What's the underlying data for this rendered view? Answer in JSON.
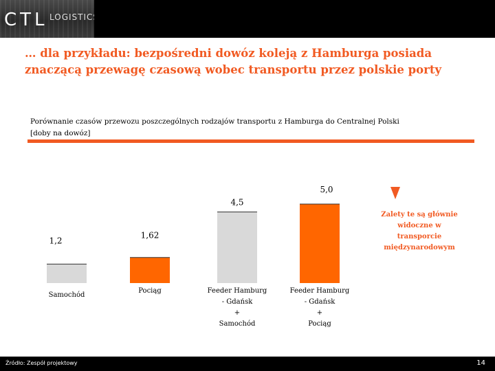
{
  "header": {
    "logo_text": "CTL",
    "logo_sub": "LOGISTICS"
  },
  "title": "… dla przykładu: bezpośredni dowóz koleją z Hamburga posiada znaczącą przewagę czasową wobec transportu przez polskie porty",
  "chart_title_line1": "Porównanie czasów przewozu poszczególnych rodzajów transportu z Hamburga do Centralnej Polski",
  "chart_title_line2": "[doby na dowóz]",
  "note": "Zalety te są głównie widoczne w transporcie międzynarodowym",
  "categories": [
    {
      "line1": "Samochód",
      "line2": "",
      "line3": "",
      "line4": ""
    },
    {
      "line1": "Pociąg",
      "line2": "",
      "line3": "",
      "line4": ""
    },
    {
      "line1": "Feeder Hamburg",
      "line2": "- Gdańsk",
      "line3": "+",
      "line4": "Samochód"
    },
    {
      "line1": "Feeder Hamburg",
      "line2": "- Gdańsk",
      "line3": "+",
      "line4": "Pociąg"
    }
  ],
  "value_labels": [
    "1,2",
    "1,62",
    "4,5",
    "5,0"
  ],
  "footer": {
    "source": "Źródło: Zespół projektowy",
    "page": "14"
  },
  "colors": {
    "accent": "#f15a22",
    "gray_bar": "#d9d9d9",
    "orange_bar": "#ff6600"
  },
  "chart_data": {
    "type": "bar",
    "title": "Porównanie czasów przewozu poszczególnych rodzajów transportu z Hamburga do Centralnej Polski",
    "ylabel": "[doby na dowóz]",
    "categories": [
      "Samochód",
      "Pociąg",
      "Feeder Hamburg - Gdańsk + Samochód",
      "Feeder Hamburg - Gdańsk + Pociąg"
    ],
    "values": [
      1.2,
      1.62,
      4.5,
      5.0
    ],
    "labels": [
      "1,2",
      "1,62",
      "4,5",
      "5,0"
    ],
    "bar_colors": [
      "#d9d9d9",
      "#ff6600",
      "#d9d9d9",
      "#ff6600"
    ],
    "ylim": [
      0,
      5.0
    ]
  }
}
